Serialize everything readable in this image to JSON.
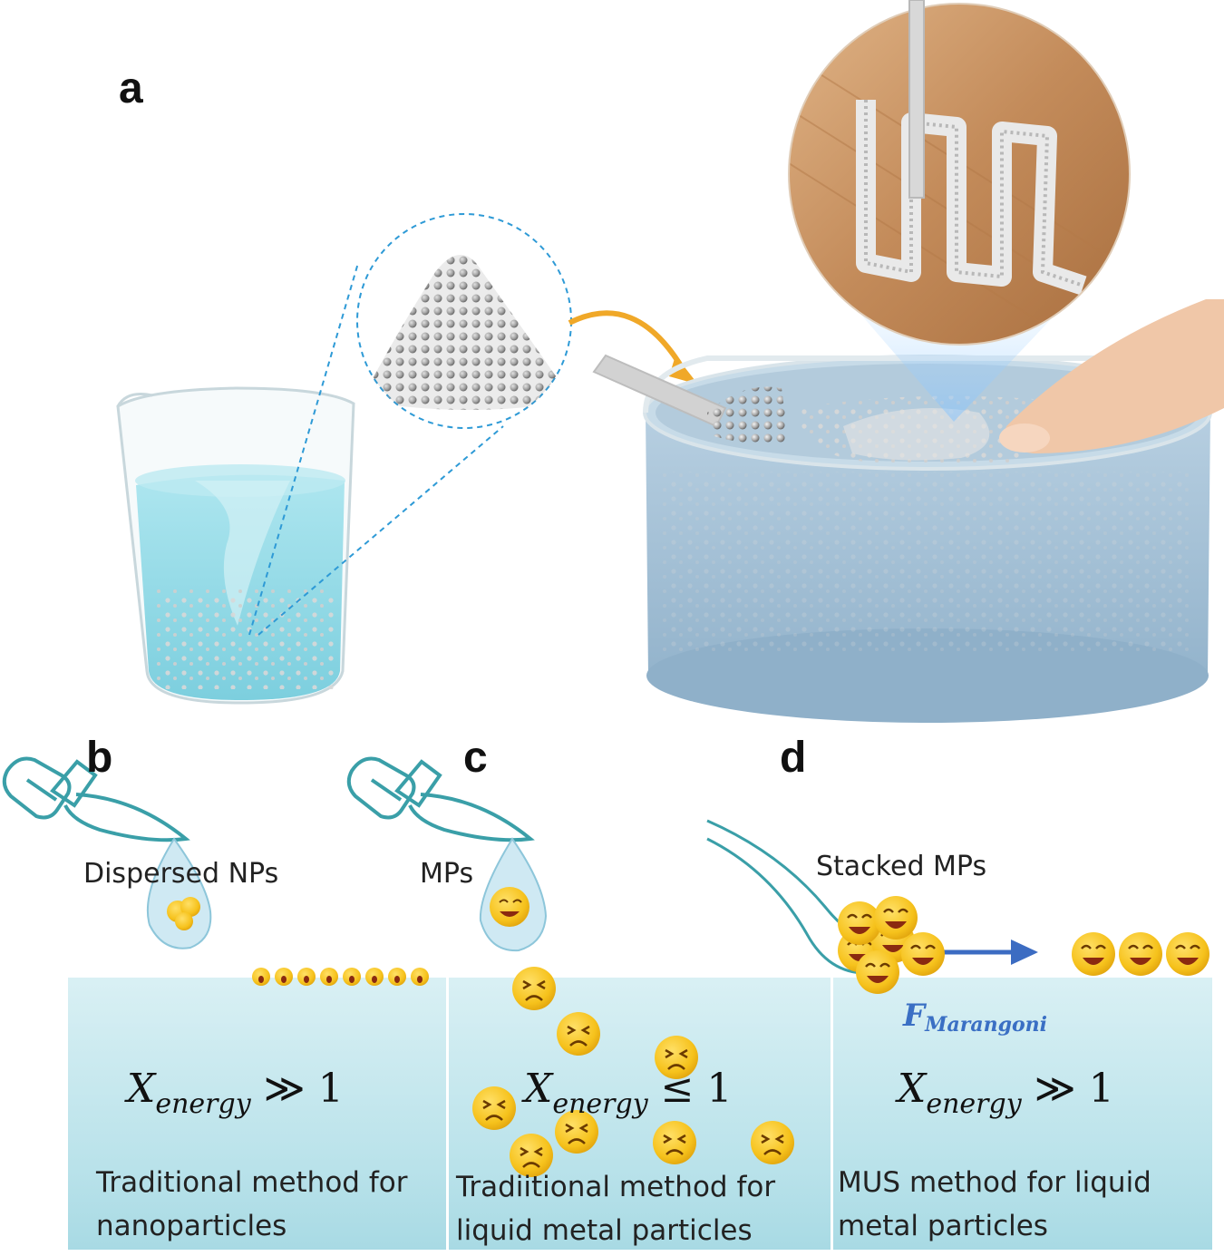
{
  "panels": {
    "a": {
      "label": "a"
    },
    "b": {
      "label": "b",
      "dropper_label": "Dispersed NPs",
      "equation": {
        "symbol": "X",
        "subscript": "energy",
        "operator": "≫ 1"
      },
      "description_line1": "Traditional method for",
      "description_line2": "nanoparticles"
    },
    "c": {
      "label": "c",
      "dropper_label": "MPs",
      "equation": {
        "symbol": "X",
        "subscript": "energy",
        "operator": "≤ 1"
      },
      "description_line1": "Tradiitional method for",
      "description_line2": "liquid metal particles"
    },
    "d": {
      "label": "d",
      "stack_label": "Stacked MPs",
      "force_symbol": "F",
      "force_subscript": "Marangoni",
      "equation": {
        "symbol": "X",
        "subscript": "energy",
        "operator": "≫ 1"
      },
      "description_line1": "MUS method for liquid",
      "description_line2": "metal particles"
    }
  },
  "colors": {
    "water_panel": "#bfe4ec",
    "dropper_stroke": "#3a9fa8",
    "arrow_blue": "#3c6cc2",
    "emoji_yellow": "#f6c21c",
    "bath_blue": "#9fbcd3",
    "beaker_water": "#8ed8e4",
    "wood": "#c99466"
  },
  "icons": [
    "dropper-icon",
    "happy-face-icon",
    "distressed-face-icon",
    "beaker-icon",
    "bath-icon",
    "powder-pile-icon",
    "finger-icon",
    "nozzle-icon",
    "curved-arrow-icon"
  ]
}
